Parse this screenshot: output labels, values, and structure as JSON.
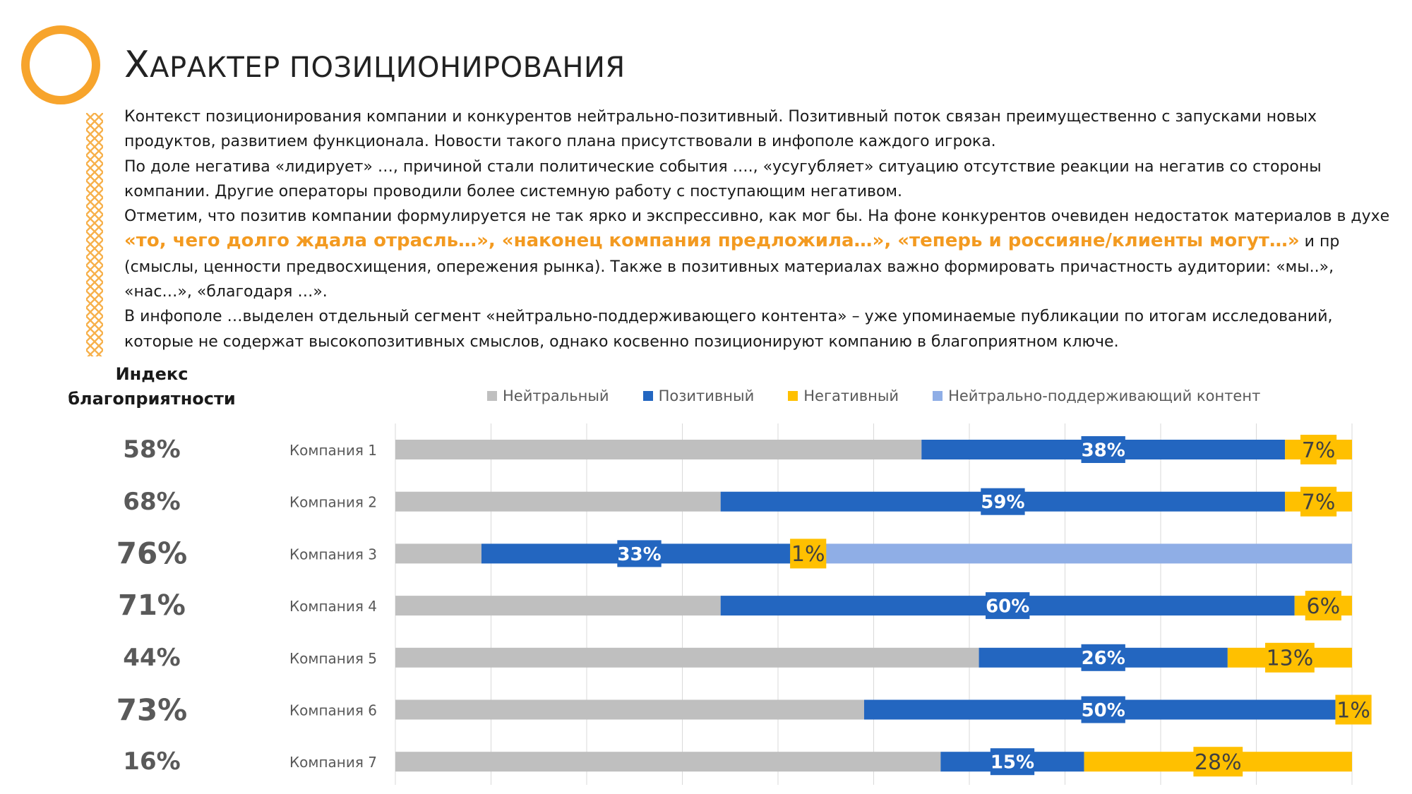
{
  "title": {
    "first_letter": "Х",
    "rest": "АРАКТЕР ПОЗИЦИОНИРОВАНИЯ"
  },
  "body": {
    "paragraphs": [
      "Контекст позиционирования компании и конкурентов нейтрально-позитивный. Позитивный поток связан преимущественно с запусками новых продуктов, развитием функционала. Новости такого плана присутствовали в инфополе каждого игрока.",
      "По доле негатива «лидирует» …, причиной стали политические события …., «усугубляет» ситуацию отсутствие реакции на негатив со стороны компании. Другие операторы проводили более системную работу с поступающим негативом."
    ],
    "para3_start": "Отметим, что позитив компании формулируется не так ярко и экспрессивно, как мог бы. На фоне конкурентов очевиден недостаток материалов в духе ",
    "para3_highlight": "«то, чего долго ждала отрасль…», «наконец компания предложила…», «теперь и россияне/клиенты могут…»",
    "para3_end": " и пр (смыслы, ценности предвосхищения, опережения рынка). Также в позитивных материалах важно формировать причастность аудитории: «мы..», «нас…», «благодаря …».",
    "para4": "В инфополе …выделен отдельный сегмент «нейтрально-поддерживающего контента» – уже упоминаемые публикации по итогам исследований, которые не содержат высокопозитивных смыслов, однако косвенно позиционируют компанию в благоприятном ключе."
  },
  "index": {
    "label_line1": "Индекс",
    "label_line2": "благоприятности",
    "values": [
      "58%",
      "68%",
      "76%",
      "71%",
      "44%",
      "73%",
      "16%"
    ]
  },
  "colors": {
    "neutral": "#bfbfbf",
    "positive": "#2366c0",
    "negative": "#ffc000",
    "support": "#8faee6",
    "accent": "#f7a42c",
    "highlight_text": "#f39a20"
  },
  "chart_data": {
    "type": "bar",
    "orientation": "horizontal",
    "stacked": true,
    "normalized": true,
    "categories": [
      "Компания 1",
      "Компания 2",
      "Компания 3",
      "Компания 4",
      "Компания 5",
      "Компания 6",
      "Компания 7"
    ],
    "series": [
      {
        "name": "Нейтральный",
        "color": "#bfbfbf",
        "values": [
          55,
          34,
          9,
          34,
          61,
          49,
          57
        ],
        "labels": [
          "",
          "",
          "",
          "",
          "",
          "",
          ""
        ]
      },
      {
        "name": "Позитивный",
        "color": "#2366c0",
        "values": [
          38,
          59,
          33,
          60,
          26,
          50,
          15
        ],
        "labels": [
          "38%",
          "59%",
          "33%",
          "60%",
          "26%",
          "50%",
          "15%"
        ]
      },
      {
        "name": "Негативный",
        "color": "#ffc000",
        "values": [
          7,
          7,
          1,
          6,
          13,
          1,
          28
        ],
        "labels": [
          "7%",
          "7%",
          "1%",
          "6%",
          "13%",
          "1%",
          "28%"
        ]
      },
      {
        "name": "Нейтрально-поддерживающий контент",
        "color": "#8faee6",
        "values": [
          0,
          0,
          57,
          0,
          0,
          0,
          0
        ],
        "labels": [
          "",
          "",
          "",
          "",
          "",
          "",
          ""
        ]
      }
    ],
    "xlim": [
      0,
      100
    ],
    "grid": true,
    "legend_position": "top"
  }
}
